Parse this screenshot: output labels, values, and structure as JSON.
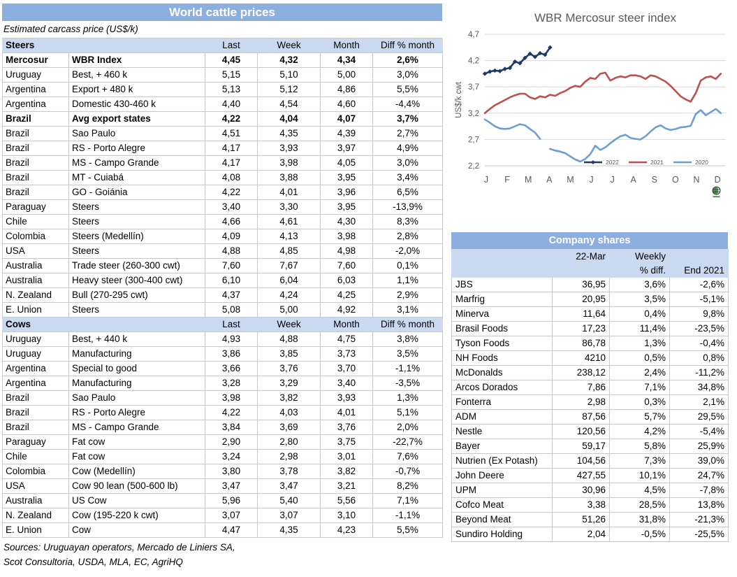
{
  "page": {
    "world_table": {
      "title": "World cattle prices",
      "subtitle": "Estimated carcass price (US$/k)",
      "col_headers": [
        "Last",
        "Week",
        "Month",
        "Diff % month"
      ],
      "steers_label": "Steers",
      "cows_label": "Cows",
      "steers_rows": [
        {
          "country": "Mercosur",
          "desc": "WBR Index",
          "last": "4,45",
          "week": "4,32",
          "month": "4,34",
          "diff": "2,6%",
          "bold": true
        },
        {
          "country": "Uruguay",
          "desc": "Best, + 460 k",
          "last": "5,15",
          "week": "5,10",
          "month": "5,00",
          "diff": "3,0%"
        },
        {
          "country": "Argentina",
          "desc": "Export + 480 k",
          "last": "5,13",
          "week": "5,12",
          "month": "4,86",
          "diff": "5,5%"
        },
        {
          "country": "Argentina",
          "desc": "Domestic 430-460 k",
          "last": "4,40",
          "week": "4,54",
          "month": "4,60",
          "diff": "-4,4%"
        },
        {
          "country": "Brazil",
          "desc": "Avg export states",
          "last": "4,22",
          "week": "4,04",
          "month": "4,07",
          "diff": "3,7%",
          "bold": true
        },
        {
          "country": "Brazil",
          "desc": "Sao Paulo",
          "last": "4,51",
          "week": "4,35",
          "month": "4,39",
          "diff": "2,7%"
        },
        {
          "country": "Brazil",
          "desc": "RS - Porto Alegre",
          "last": "4,17",
          "week": "3,93",
          "month": "3,97",
          "diff": "4,9%"
        },
        {
          "country": "Brazil",
          "desc": "MS - Campo Grande",
          "last": "4,17",
          "week": "3,98",
          "month": "4,05",
          "diff": "3,0%"
        },
        {
          "country": "Brazil",
          "desc": "MT - Cuiabá",
          "last": "4,08",
          "week": "3,88",
          "month": "3,95",
          "diff": "3,4%"
        },
        {
          "country": "Brazil",
          "desc": "GO - Goiánia",
          "last": "4,22",
          "week": "4,01",
          "month": "3,96",
          "diff": "6,5%"
        },
        {
          "country": "Paraguay",
          "desc": "Steers",
          "last": "3,40",
          "week": "3,30",
          "month": "3,95",
          "diff": "-13,9%"
        },
        {
          "country": "Chile",
          "desc": "Steers",
          "last": "4,66",
          "week": "4,61",
          "month": "4,30",
          "diff": "8,3%"
        },
        {
          "country": "Colombia",
          "desc": "Steers (Medellín)",
          "last": "4,09",
          "week": "4,13",
          "month": "3,98",
          "diff": "2,8%"
        },
        {
          "country": "USA",
          "desc": "Steers",
          "last": "4,88",
          "week": "4,85",
          "month": "4,98",
          "diff": "-2,0%"
        },
        {
          "country": "Australia",
          "desc": "Trade steer (260-300 cwt)",
          "last": "7,60",
          "week": "7,67",
          "month": "7,60",
          "diff": "0,1%"
        },
        {
          "country": "Australia",
          "desc": "Heavy steer (300-400 cwt)",
          "last": "6,10",
          "week": "6,04",
          "month": "6,03",
          "diff": "1,1%"
        },
        {
          "country": "N. Zealand",
          "desc": "Bull (270-295 cwt)",
          "last": "4,37",
          "week": "4,24",
          "month": "4,25",
          "diff": "2,9%"
        },
        {
          "country": "E. Union",
          "desc": "Steers",
          "last": "5,08",
          "week": "5,00",
          "month": "4,92",
          "diff": "3,1%"
        }
      ],
      "cows_rows": [
        {
          "country": "Uruguay",
          "desc": "Best, + 440 k",
          "last": "4,93",
          "week": "4,88",
          "month": "4,75",
          "diff": "3,8%"
        },
        {
          "country": "Uruguay",
          "desc": "Manufacturing",
          "last": "3,86",
          "week": "3,85",
          "month": "3,73",
          "diff": "3,5%"
        },
        {
          "country": "Argentina",
          "desc": "Special to good",
          "last": "3,66",
          "week": "3,76",
          "month": "3,70",
          "diff": "-1,1%"
        },
        {
          "country": "Argentina",
          "desc": "Manufacturing",
          "last": "3,28",
          "week": "3,29",
          "month": "3,40",
          "diff": "-3,5%"
        },
        {
          "country": "Brazil",
          "desc": "Sao Paulo",
          "last": "3,98",
          "week": "3,82",
          "month": "3,93",
          "diff": "1,3%"
        },
        {
          "country": "Brazil",
          "desc": "RS - Porto Alegre",
          "last": "4,22",
          "week": "4,03",
          "month": "4,01",
          "diff": "5,1%"
        },
        {
          "country": "Brazil",
          "desc": "MS - Campo Grande",
          "last": "3,84",
          "week": "3,69",
          "month": "3,76",
          "diff": "2,0%"
        },
        {
          "country": "Paraguay",
          "desc": "Fat cow",
          "last": "2,90",
          "week": "2,80",
          "month": "3,75",
          "diff": "-22,7%"
        },
        {
          "country": "Chile",
          "desc": "Fat cow",
          "last": "3,24",
          "week": "2,98",
          "month": "3,01",
          "diff": "7,6%"
        },
        {
          "country": "Colombia",
          "desc": "Cow (Medellín)",
          "last": "3,80",
          "week": "3,78",
          "month": "3,82",
          "diff": "-0,7%"
        },
        {
          "country": "USA",
          "desc": "Cow 90 lean (500-600 lb)",
          "last": "3,47",
          "week": "3,47",
          "month": "3,21",
          "diff": "8,2%"
        },
        {
          "country": "Australia",
          "desc": "US Cow",
          "last": "5,96",
          "week": "5,40",
          "month": "5,56",
          "diff": "7,1%"
        },
        {
          "country": "N. Zealand",
          "desc": "Cow (195-220 k cwt)",
          "last": "3,07",
          "week": "3,07",
          "month": "3,10",
          "diff": "-1,1%"
        },
        {
          "country": "E. Union",
          "desc": "Cow",
          "last": "4,47",
          "week": "4,35",
          "month": "4,23",
          "diff": "5,5%"
        }
      ],
      "sources_line1": "Sources: Uruguayan operators, Mercado de Liniers SA,",
      "sources_line2": "Scot Consultoria, USDA, MLA, EC, AgriHQ"
    },
    "company_table": {
      "title": "Company shares",
      "header_date": "22-Mar",
      "header_weekly_1": "Weekly",
      "header_weekly_2": "% diff.",
      "header_end": "End 2021",
      "rows": [
        {
          "name": "JBS",
          "price": "36,95",
          "weekly": "3,6%",
          "end": "-2,6%"
        },
        {
          "name": "Marfrig",
          "price": "20,95",
          "weekly": "3,5%",
          "end": "-5,1%"
        },
        {
          "name": "Minerva",
          "price": "11,64",
          "weekly": "0,4%",
          "end": "9,8%"
        },
        {
          "name": "Brasil Foods",
          "price": "17,23",
          "weekly": "11,4%",
          "end": "-23,5%"
        },
        {
          "name": "Tyson Foods",
          "price": "86,78",
          "weekly": "1,3%",
          "end": "-0,4%"
        },
        {
          "name": "NH Foods",
          "price": "4210",
          "weekly": "0,5%",
          "end": "0,8%"
        },
        {
          "name": "McDonalds",
          "price": "238,12",
          "weekly": "2,4%",
          "end": "-11,2%"
        },
        {
          "name": "Arcos Dorados",
          "price": "7,86",
          "weekly": "7,1%",
          "end": "34,8%"
        },
        {
          "name": "Fonterra",
          "price": "2,98",
          "weekly": "0,3%",
          "end": "2,1%"
        },
        {
          "name": "ADM",
          "price": "87,56",
          "weekly": "5,7%",
          "end": "29,5%"
        },
        {
          "name": "Nestle",
          "price": "120,56",
          "weekly": "4,2%",
          "end": "-5,4%"
        },
        {
          "name": "Bayer",
          "price": "59,17",
          "weekly": "5,8%",
          "end": "25,9%"
        },
        {
          "name": "Nutrien (Ex Potash)",
          "price": "104,56",
          "weekly": "7,3%",
          "end": "39,0%"
        },
        {
          "name": "John Deere",
          "price": "427,55",
          "weekly": "10,1%",
          "end": "24,7%"
        },
        {
          "name": "UPM",
          "price": "30,96",
          "weekly": "4,5%",
          "end": "-7,8%"
        },
        {
          "name": "Cofco Meat",
          "price": "3,38",
          "weekly": "28,5%",
          "end": "13,8%"
        },
        {
          "name": "Beyond Meat",
          "price": "51,26",
          "weekly": "31,8%",
          "end": "-21,3%"
        },
        {
          "name": "Sundiro Holding",
          "price": "2,04",
          "weekly": "-0,5%",
          "end": "-25,5%"
        }
      ]
    }
  },
  "chart_data": {
    "type": "line",
    "title": "WBR Mercosur steer index",
    "ylabel": "US$/k cwt",
    "x_labels": [
      "J",
      "F",
      "M",
      "A",
      "M",
      "J",
      "J",
      "A",
      "S",
      "O",
      "N",
      "D"
    ],
    "yticks": [
      2.2,
      2.7,
      3.2,
      3.7,
      4.2,
      4.7
    ],
    "ylim": [
      2.2,
      4.7
    ],
    "grid": true,
    "legend_position": "inside-bottom-right",
    "series": [
      {
        "name": "2022",
        "color": "#1f3864",
        "marker": "diamond",
        "x_start": 0,
        "x_step": 0.25,
        "values": [
          3.95,
          3.99,
          4.01,
          4.0,
          4.04,
          4.06,
          4.18,
          4.15,
          4.25,
          4.33,
          4.27,
          4.34,
          4.31,
          4.45
        ]
      },
      {
        "name": "2021",
        "color": "#c0504d",
        "marker": null,
        "x_start": 0,
        "x_step": 0.25,
        "values": [
          3.2,
          3.28,
          3.35,
          3.4,
          3.45,
          3.5,
          3.54,
          3.57,
          3.57,
          3.5,
          3.47,
          3.52,
          3.5,
          3.55,
          3.53,
          3.58,
          3.62,
          3.68,
          3.72,
          3.7,
          3.8,
          3.87,
          3.85,
          3.95,
          3.97,
          3.82,
          3.87,
          3.9,
          3.88,
          3.92,
          3.92,
          3.9,
          3.85,
          3.92,
          3.9,
          3.85,
          3.8,
          3.72,
          3.62,
          3.52,
          3.46,
          3.42,
          3.58,
          3.82,
          3.88,
          3.9,
          3.85,
          3.95
        ]
      },
      {
        "name": "2020",
        "color": "#6e9fd4",
        "marker": null,
        "x_start": 0,
        "x_step": 0.25,
        "values": [
          3.08,
          3.02,
          2.95,
          2.91,
          2.9,
          2.91,
          2.95,
          2.99,
          2.97,
          2.9,
          2.83,
          2.71,
          null,
          2.52,
          2.49,
          2.47,
          2.44,
          2.38,
          2.32,
          2.28,
          2.33,
          2.42,
          2.58,
          2.5,
          2.55,
          2.63,
          2.7,
          2.76,
          2.79,
          2.73,
          2.71,
          2.7,
          2.76,
          2.85,
          2.93,
          2.97,
          2.91,
          2.88,
          2.9,
          2.93,
          2.94,
          2.96,
          3.18,
          3.26,
          3.16,
          3.22,
          3.28,
          3.2
        ]
      }
    ]
  },
  "colors": {
    "band_blue": "#8cafdf",
    "header_light_blue": "#c9daf0",
    "border_gray": "#c9c9c9",
    "grid_gray": "#d9d9d9",
    "axis_text_gray": "#595959",
    "series_2022": "#1f3864",
    "series_2021": "#c0504d",
    "series_2020": "#6e9fd4"
  }
}
